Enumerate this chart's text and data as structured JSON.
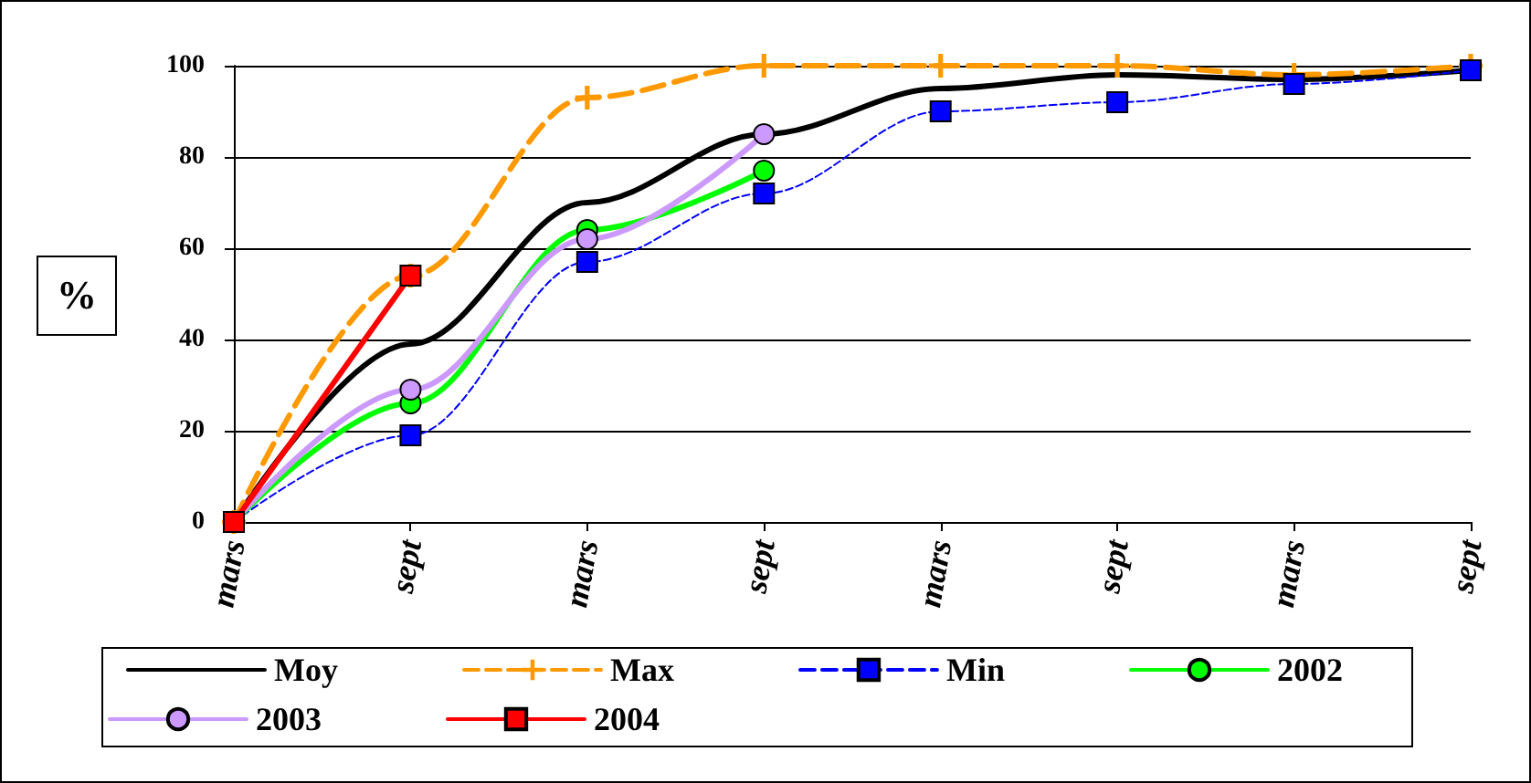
{
  "chart_data": {
    "type": "line",
    "ylabel": "%",
    "categories": [
      "mars",
      "sept",
      "mars",
      "sept",
      "mars",
      "sept",
      "mars",
      "sept"
    ],
    "ylim": [
      0,
      100
    ],
    "yticks": [
      0,
      20,
      40,
      60,
      80,
      100
    ],
    "grid": "y",
    "legend": "bottom",
    "series": [
      {
        "name": "Moy",
        "color": "#000000",
        "marker": "none",
        "line_style": "solid",
        "values": [
          0,
          39,
          70,
          85,
          95,
          98,
          97,
          99
        ]
      },
      {
        "name": "Max",
        "color": "#ff9900",
        "marker": "cross",
        "line_style": "dashed",
        "values": [
          0,
          54,
          93,
          100,
          100,
          100,
          98,
          100
        ]
      },
      {
        "name": "Min",
        "color": "#0000ff",
        "marker": "square",
        "line_style": "dashed",
        "values": [
          0,
          19,
          57,
          72,
          90,
          92,
          96,
          99
        ]
      },
      {
        "name": "2002",
        "color": "#00ff00",
        "marker": "circle",
        "line_style": "solid",
        "values": [
          0,
          26,
          64,
          77,
          null,
          null,
          null,
          null
        ]
      },
      {
        "name": "2003",
        "color": "#cc99ff",
        "marker": "circle",
        "line_style": "solid",
        "values": [
          0,
          29,
          62,
          85,
          null,
          null,
          null,
          null
        ]
      },
      {
        "name": "2004",
        "color": "#ff0000",
        "marker": "square",
        "line_style": "solid",
        "values": [
          0,
          54,
          null,
          null,
          null,
          null,
          null,
          null
        ]
      }
    ]
  }
}
